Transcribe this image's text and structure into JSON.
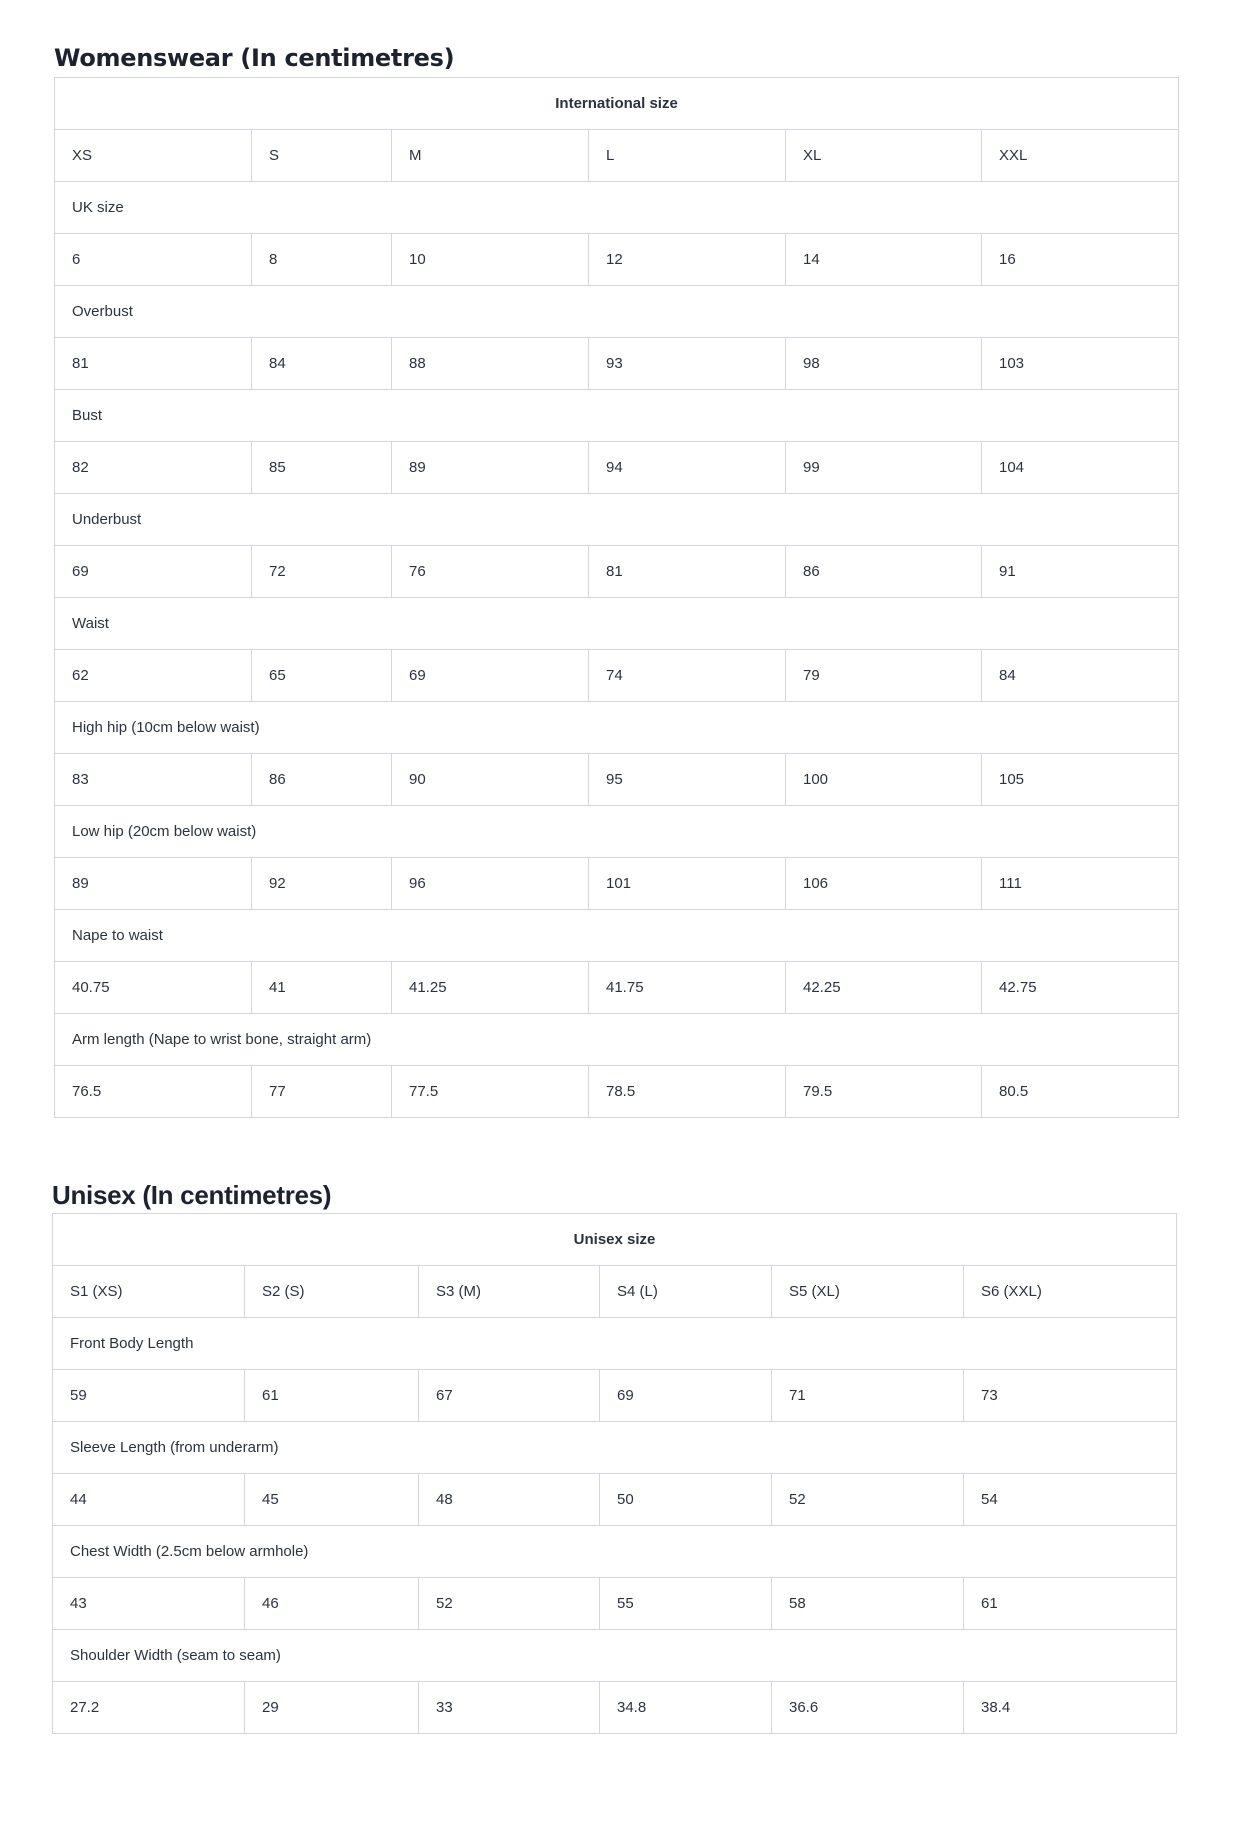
{
  "womenswear": {
    "title": "Womenswear (In centimetres)",
    "header": "International size",
    "sizes": [
      "XS",
      "S",
      "M",
      "L",
      "XL",
      "XXL"
    ],
    "measurements": [
      {
        "label": "UK size",
        "values": [
          "6",
          "8",
          "10",
          "12",
          "14",
          "16"
        ]
      },
      {
        "label": "Overbust",
        "values": [
          "81",
          "84",
          "88",
          "93",
          "98",
          "103"
        ]
      },
      {
        "label": "Bust",
        "values": [
          "82",
          "85",
          "89",
          "94",
          "99",
          "104"
        ]
      },
      {
        "label": "Underbust",
        "values": [
          "69",
          "72",
          "76",
          "81",
          "86",
          "91"
        ]
      },
      {
        "label": "Waist",
        "values": [
          "62",
          "65",
          "69",
          "74",
          "79",
          "84"
        ]
      },
      {
        "label": "High hip (10cm below waist)",
        "values": [
          "83",
          "86",
          "90",
          "95",
          "100",
          "105"
        ]
      },
      {
        "label": "Low hip (20cm below waist)",
        "values": [
          "89",
          "92",
          "96",
          "101",
          "106",
          "111"
        ]
      },
      {
        "label": "Nape to waist",
        "values": [
          "40.75",
          "41",
          "41.25",
          "41.75",
          "42.25",
          "42.75"
        ]
      },
      {
        "label": "Arm length (Nape to wrist bone, straight arm)",
        "values": [
          "76.5",
          "77",
          "77.5",
          "78.5",
          "79.5",
          "80.5"
        ]
      }
    ]
  },
  "unisex": {
    "title": "Unisex (In centimetres)",
    "header": "Unisex size",
    "sizes": [
      "S1 (XS)",
      "S2 (S)",
      "S3 (M)",
      "S4 (L)",
      "S5 (XL)",
      "S6 (XXL)"
    ],
    "measurements": [
      {
        "label": "Front Body Length",
        "values": [
          "59",
          "61",
          "67",
          "69",
          "71",
          "73"
        ]
      },
      {
        "label": "Sleeve Length (from underarm)",
        "values": [
          "44",
          "45",
          "48",
          "50",
          "52",
          "54"
        ]
      },
      {
        "label": "Chest Width (2.5cm below armhole)",
        "values": [
          "43",
          "46",
          "52",
          "55",
          "58",
          "61"
        ]
      },
      {
        "label": "Shoulder Width (seam to seam)",
        "values": [
          "27.2",
          "29",
          "33",
          "34.8",
          "36.6",
          "38.4"
        ]
      }
    ]
  }
}
